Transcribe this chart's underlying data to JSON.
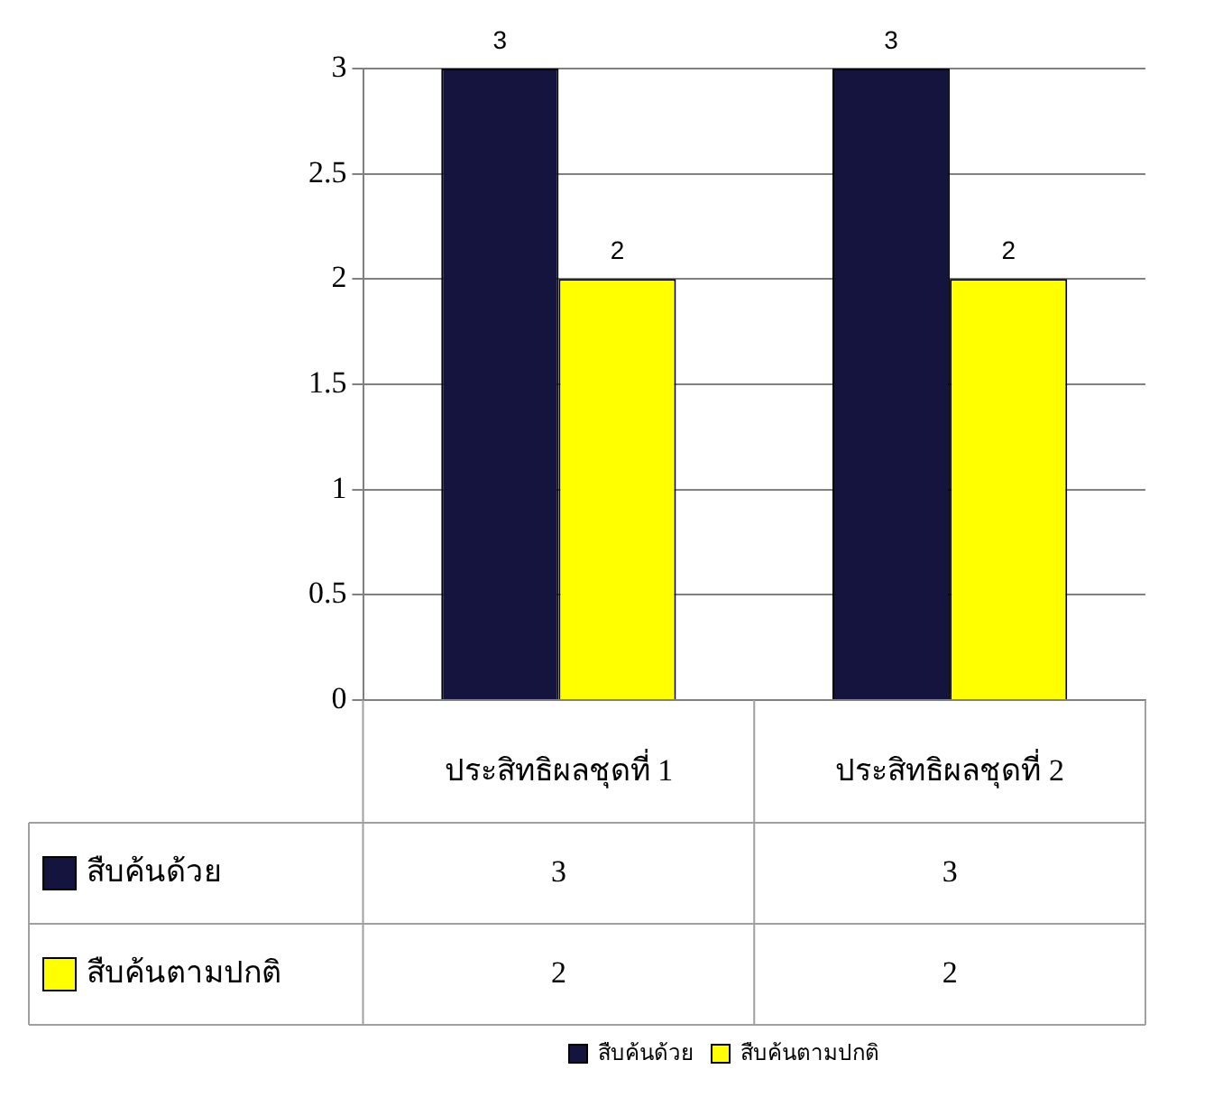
{
  "chart_data": {
    "type": "bar",
    "categories": [
      "ประสิทธิผลชุดที่ 1",
      "ประสิทธิผลชุดที่ 2"
    ],
    "series": [
      {
        "name": "สืบค้นด้วย",
        "color": "#14143f",
        "values": [
          3,
          3
        ]
      },
      {
        "name": "สืบค้นตามปกติ",
        "color": "#ffff00",
        "values": [
          2,
          2
        ]
      }
    ],
    "ylim": [
      0,
      3
    ],
    "yticks": [
      0,
      0.5,
      1,
      1.5,
      2,
      2.5,
      3
    ],
    "annotations": [
      "3",
      "3",
      "2",
      "2"
    ],
    "grid": "y",
    "legend": "bottom",
    "data_labels": true
  }
}
